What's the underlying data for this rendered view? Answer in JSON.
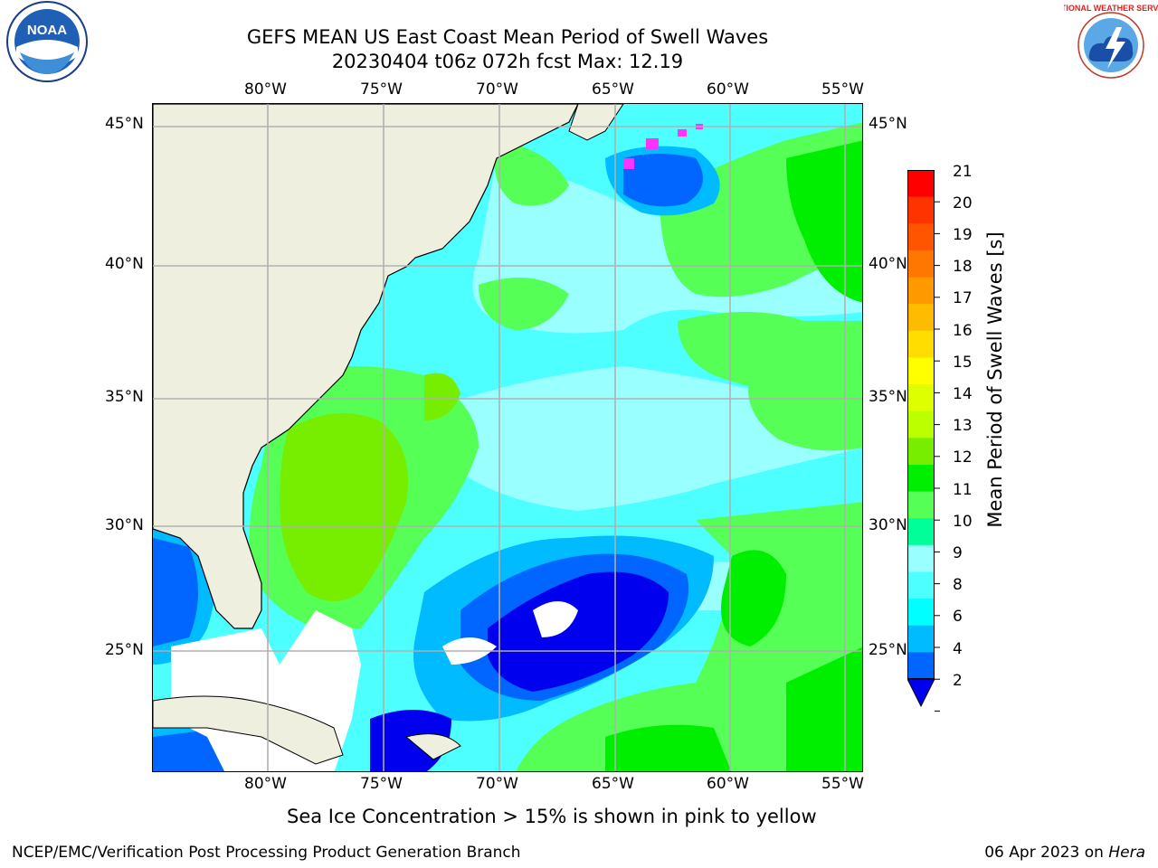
{
  "title": {
    "line1": "GEFS MEAN US East Coast Mean Period of Swell Waves",
    "line2": "20230404 t06z 072h fcst   Max: 12.19"
  },
  "logos": {
    "left": {
      "icon": "noaa-logo",
      "text": "NOAA"
    },
    "right": {
      "icon": "nws-logo",
      "text": "NATIONAL WEATHER SERVICE"
    }
  },
  "map": {
    "lon_labels": [
      "80°W",
      "75°W",
      "70°W",
      "65°W",
      "60°W",
      "55°W"
    ],
    "lat_labels": [
      "45°N",
      "40°N",
      "35°N",
      "30°N",
      "25°N"
    ],
    "land_color": "#efefdf",
    "ice_color": "#ff33ff",
    "max_value": 12.19
  },
  "colorbar": {
    "label": "Mean Period of Swell Waves [s]",
    "ticks": [
      "21",
      "20",
      "19",
      "18",
      "17",
      "16",
      "15",
      "14",
      "13",
      "12",
      "11",
      "10",
      "9",
      "8",
      "6",
      "4",
      "2"
    ],
    "colors": [
      "#ff0000",
      "#ff3300",
      "#ff5500",
      "#ff7700",
      "#ff9900",
      "#ffbb00",
      "#ffdd00",
      "#ffff00",
      "#ddff00",
      "#bbff00",
      "#77ee00",
      "#00ee00",
      "#55ff55",
      "#00ff99",
      "#99ffff",
      "#4dffff",
      "#00ffff",
      "#00bbff",
      "#0066ff"
    ],
    "extend_color": "#0000ee"
  },
  "ice_note": "Sea Ice Concentration > 15% is shown in pink to yellow",
  "footer": {
    "left": "NCEP/EMC/Verification Post Processing Product Generation Branch",
    "date": "06 Apr 2023 on ",
    "machine": "Hera"
  }
}
